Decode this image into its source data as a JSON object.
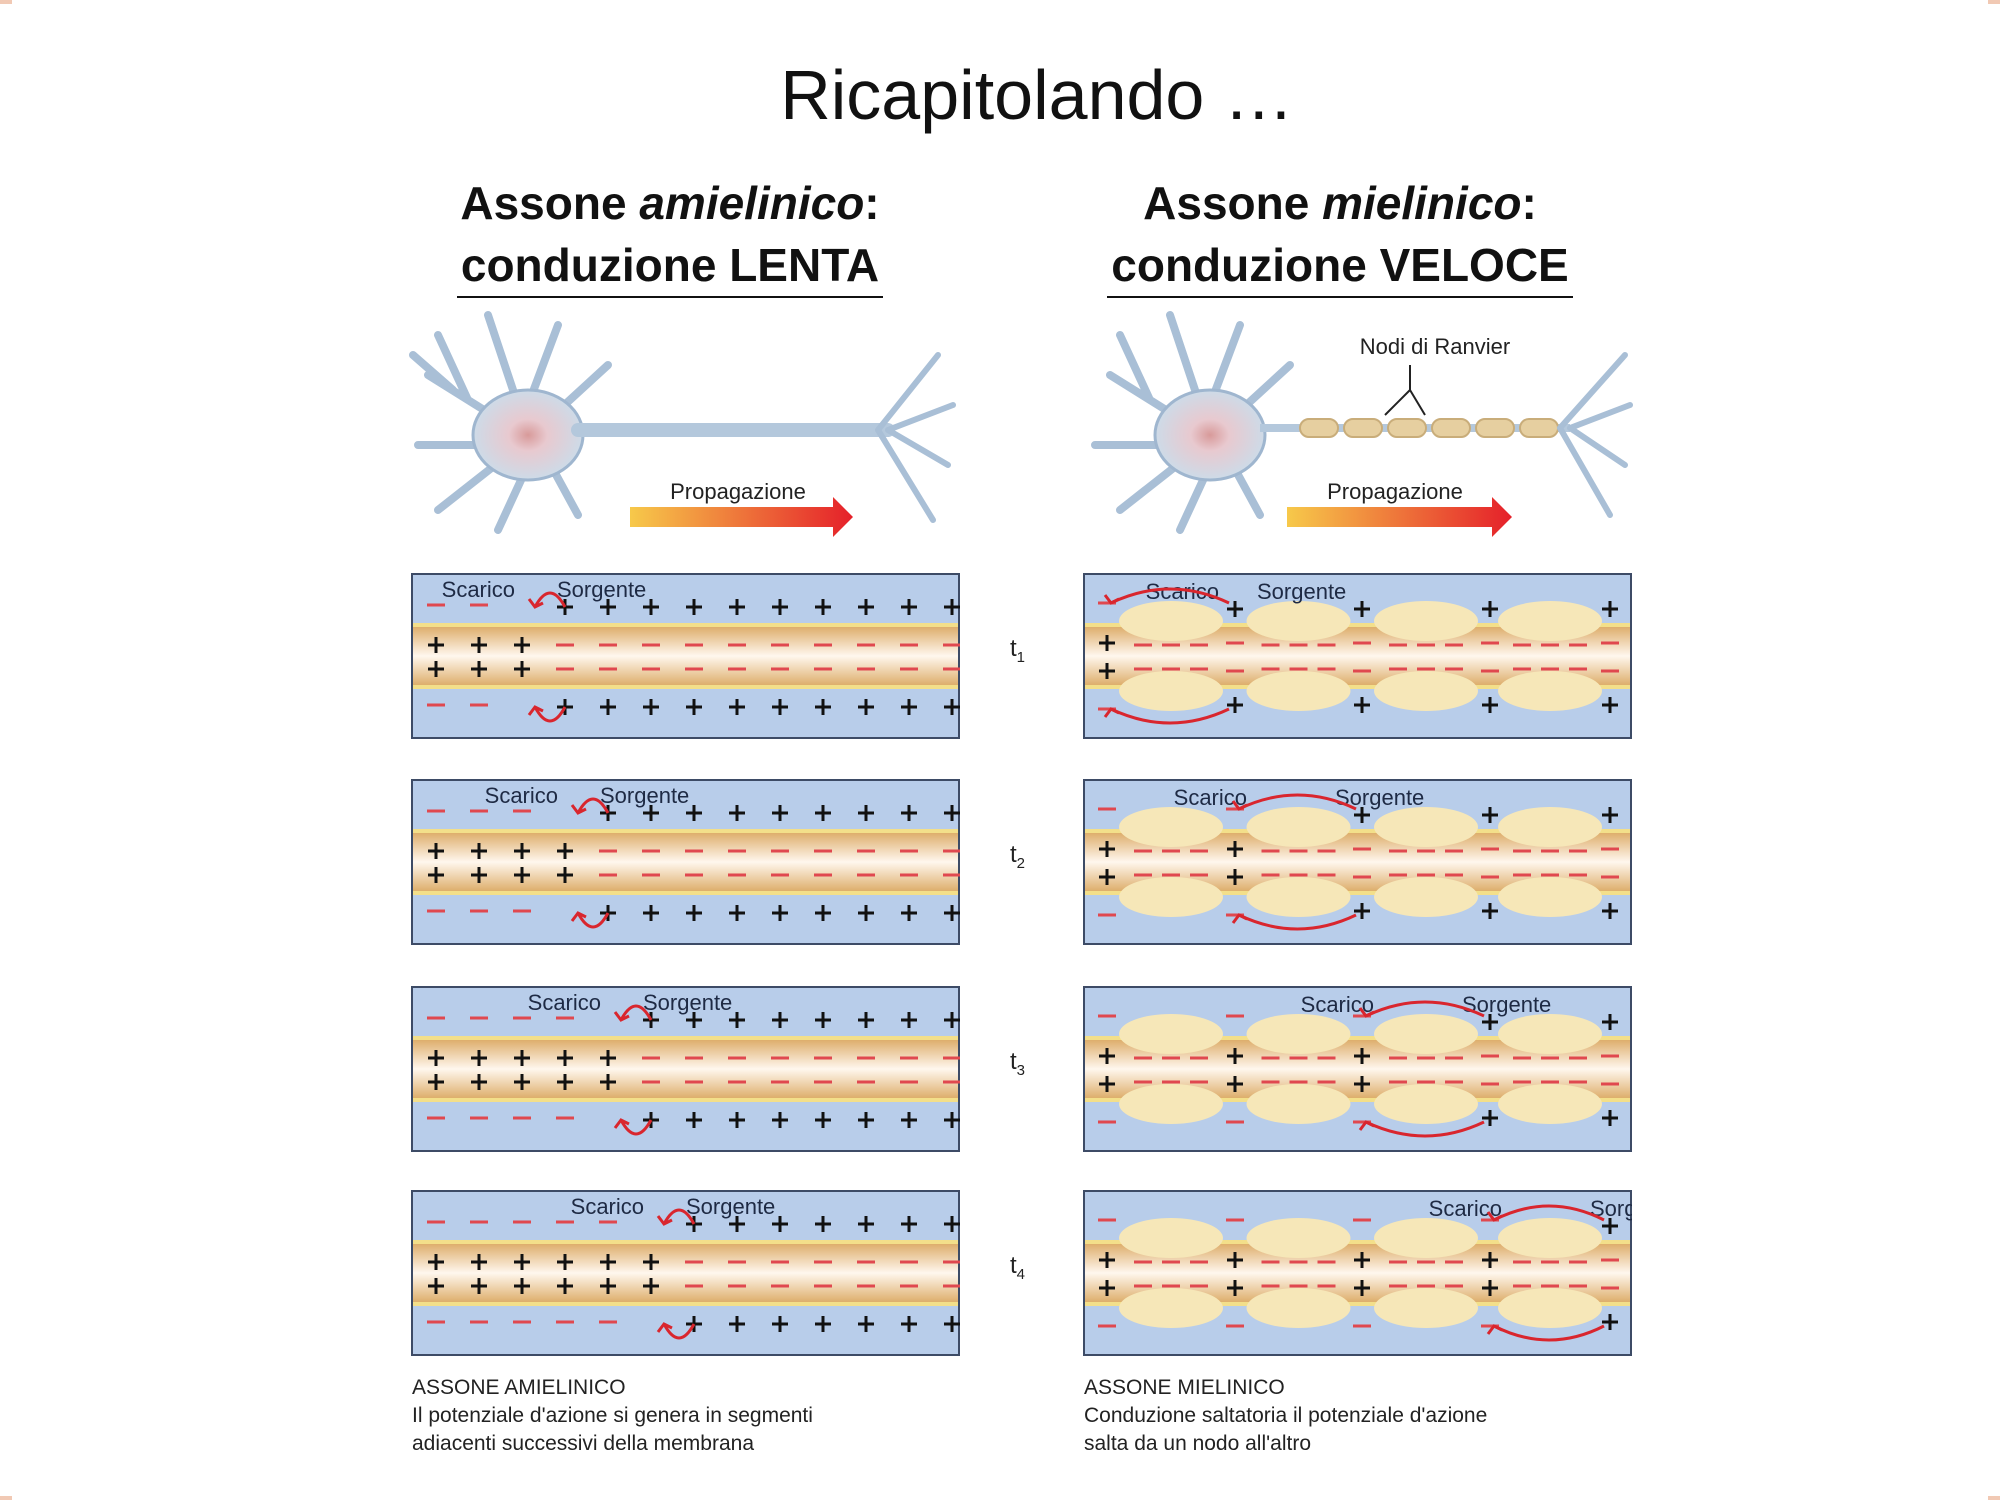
{
  "title": "Ricapitolando …",
  "left": {
    "heading_line1_a": "Assone ",
    "heading_line1_b": "amielinico",
    "heading_line1_c": ":",
    "heading_line2": "conduzione LENTA",
    "propagation_label": "Propagazione",
    "caption_title": "ASSONE AMIELINICO",
    "caption_line1": "Il potenziale d'azione si genera in segmenti",
    "caption_line2": "adiacenti successivi della membrana",
    "steps_front": [
      3,
      4,
      5,
      6
    ]
  },
  "right": {
    "heading_line1_a": "Assone ",
    "heading_line1_b": "mielinico",
    "heading_line1_c": ":",
    "heading_line2": "conduzione VELOCE",
    "propagation_label": "Propagazione",
    "nodes_label": "Nodi di Ranvier",
    "caption_title": "ASSONE MIELINICO",
    "caption_line1": "Conduzione saltatoria il potenziale d'azione",
    "caption_line2": "salta da un nodo all'altro",
    "steps_active_node": [
      0,
      1,
      2,
      3
    ]
  },
  "panel_labels": {
    "sink": "Scarico",
    "source": "Sorgente"
  },
  "time_labels": [
    "t1",
    "t2",
    "t3",
    "t4"
  ],
  "time_label_parts": [
    [
      "t",
      "1"
    ],
    [
      "t",
      "2"
    ],
    [
      "t",
      "3"
    ],
    [
      "t",
      "4"
    ]
  ],
  "colors": {
    "extracellular": "#b8cdea",
    "axoplasm": "#f2d3ac",
    "myelin": "#f6e7b8",
    "positive": "#111111",
    "negative": "#e0484f",
    "arrow": "#d9262e"
  }
}
